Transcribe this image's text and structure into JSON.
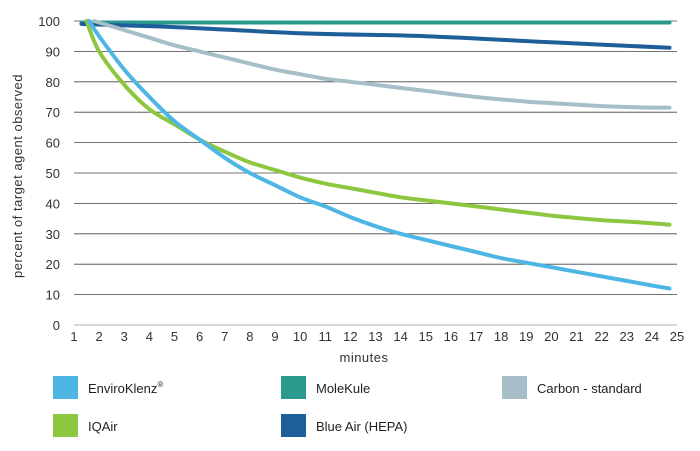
{
  "chart_data": {
    "type": "line",
    "title": "",
    "xlabel": "minutes",
    "ylabel": "percent of target agent observed",
    "xlim": [
      1,
      25
    ],
    "ylim": [
      0,
      100
    ],
    "x_ticks": [
      1,
      2,
      3,
      4,
      5,
      6,
      7,
      8,
      9,
      10,
      11,
      12,
      13,
      14,
      15,
      16,
      17,
      18,
      19,
      20,
      21,
      22,
      23,
      24,
      25
    ],
    "y_ticks": [
      0,
      10,
      20,
      30,
      40,
      50,
      60,
      70,
      80,
      90,
      100
    ],
    "grid": "horizontal",
    "legend_position": "bottom",
    "series": [
      {
        "name": "EnviroKlenz",
        "name_superscript": "®",
        "color": "#4db6e4",
        "x": [
          1.6,
          2,
          3,
          4,
          5,
          6,
          7,
          8,
          9,
          10,
          11,
          12,
          13,
          14,
          15,
          16,
          17,
          18,
          19,
          20,
          21,
          22,
          23,
          24,
          24.7
        ],
        "y": [
          100,
          95,
          84,
          75,
          67,
          61,
          55,
          50,
          46,
          42,
          39,
          35.5,
          32.5,
          30,
          28,
          26,
          24,
          22,
          20.5,
          19,
          17.5,
          16,
          14.5,
          13,
          12
        ]
      },
      {
        "name": "MoleKule",
        "color": "#2a9a8f",
        "x": [
          1.3,
          5,
          10,
          15,
          20,
          24.7
        ],
        "y": [
          99.5,
          99.5,
          99.5,
          99.5,
          99.5,
          99.5
        ]
      },
      {
        "name": "Carbon - standard",
        "color": "#a6bec8",
        "x": [
          1.8,
          3,
          4,
          5,
          6,
          7,
          8,
          9,
          10,
          11,
          12,
          13,
          14,
          15,
          16,
          17,
          18,
          19,
          20,
          21,
          22,
          23,
          24,
          24.7
        ],
        "y": [
          100,
          97,
          94.5,
          92,
          90,
          88,
          86,
          84,
          82.5,
          81,
          80,
          79,
          78,
          77,
          76,
          75,
          74.2,
          73.5,
          73,
          72.5,
          72,
          71.7,
          71.5,
          71.5
        ]
      },
      {
        "name": "IQAir",
        "color": "#8dc63f",
        "x": [
          1.5,
          2,
          3,
          4,
          5,
          6,
          7,
          8,
          9,
          10,
          11,
          12,
          13,
          14,
          15,
          16,
          17,
          18,
          19,
          20,
          21,
          22,
          23,
          24,
          24.7
        ],
        "y": [
          100,
          90,
          79,
          71,
          66,
          61,
          57,
          53.5,
          51,
          48.5,
          46.5,
          45,
          43.5,
          42,
          41,
          40,
          39,
          38,
          37,
          36,
          35.2,
          34.5,
          34,
          33.5,
          33
        ]
      },
      {
        "name": "Blue Air (HEPA)",
        "color": "#1f5f99",
        "x": [
          1.3,
          5,
          10,
          15,
          20,
          24.7
        ],
        "y": [
          99,
          98,
          96,
          95,
          93,
          91.2
        ]
      }
    ]
  }
}
